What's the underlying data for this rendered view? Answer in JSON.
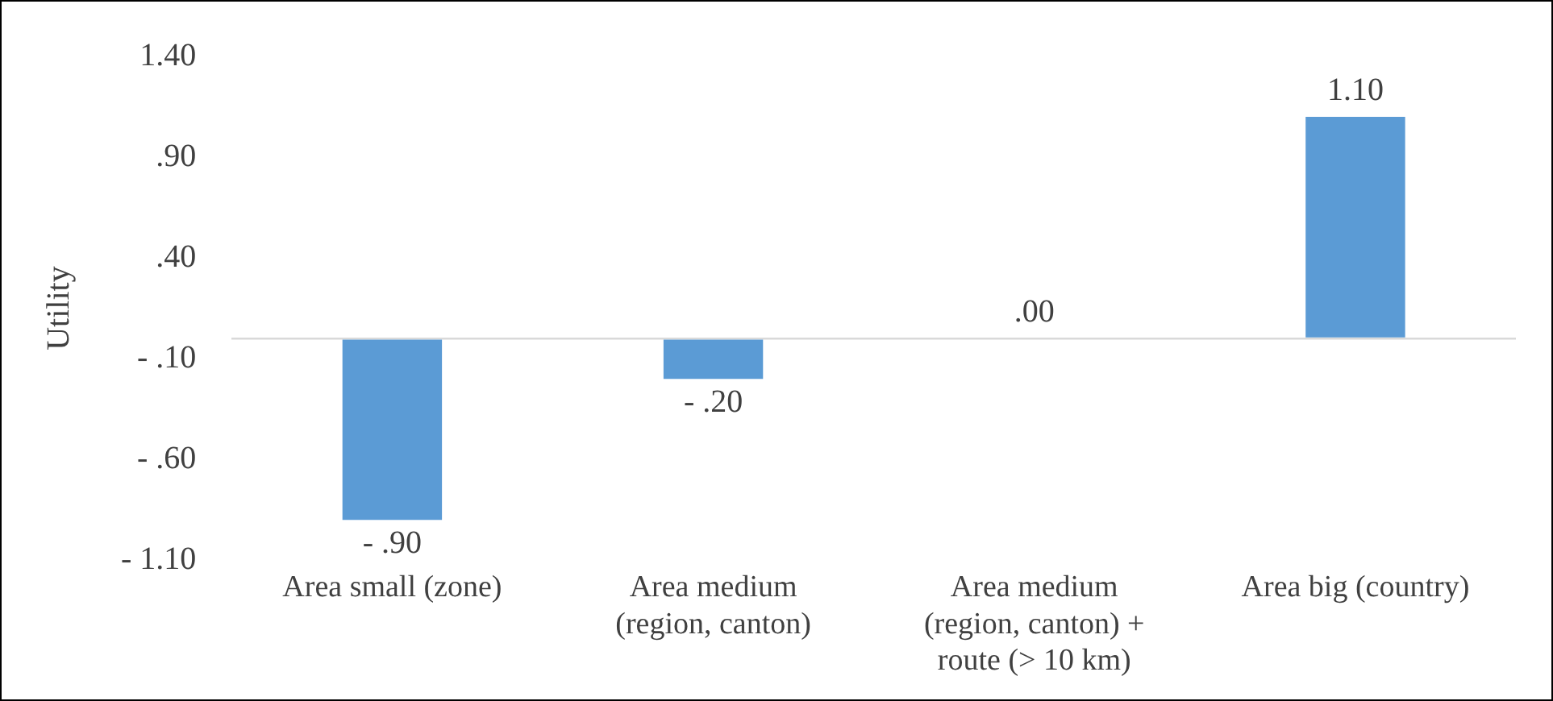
{
  "chart_data": {
    "type": "bar",
    "ylabel": "Utility",
    "categories": [
      "Area small (zone)",
      "Area medium (region, canton)",
      "Area medium (region, canton) + route (> 10 km)",
      "Area big (country)"
    ],
    "values": [
      -0.9,
      -0.2,
      0,
      1.1
    ],
    "value_labels": [
      "- .90",
      "- .20",
      ".00",
      "1.10"
    ],
    "color": "#5b9bd5",
    "ylim": [
      -1.1,
      1.4
    ],
    "yticks": [
      {
        "value": -1.1,
        "label": "- 1.10"
      },
      {
        "value": -0.6,
        "label": "- .60"
      },
      {
        "value": -0.1,
        "label": "- .10"
      },
      {
        "value": 0.4,
        "label": ".40"
      },
      {
        "value": 0.9,
        "label": ".90"
      },
      {
        "value": 1.4,
        "label": "1.40"
      }
    ],
    "grid": false,
    "legend": false
  }
}
